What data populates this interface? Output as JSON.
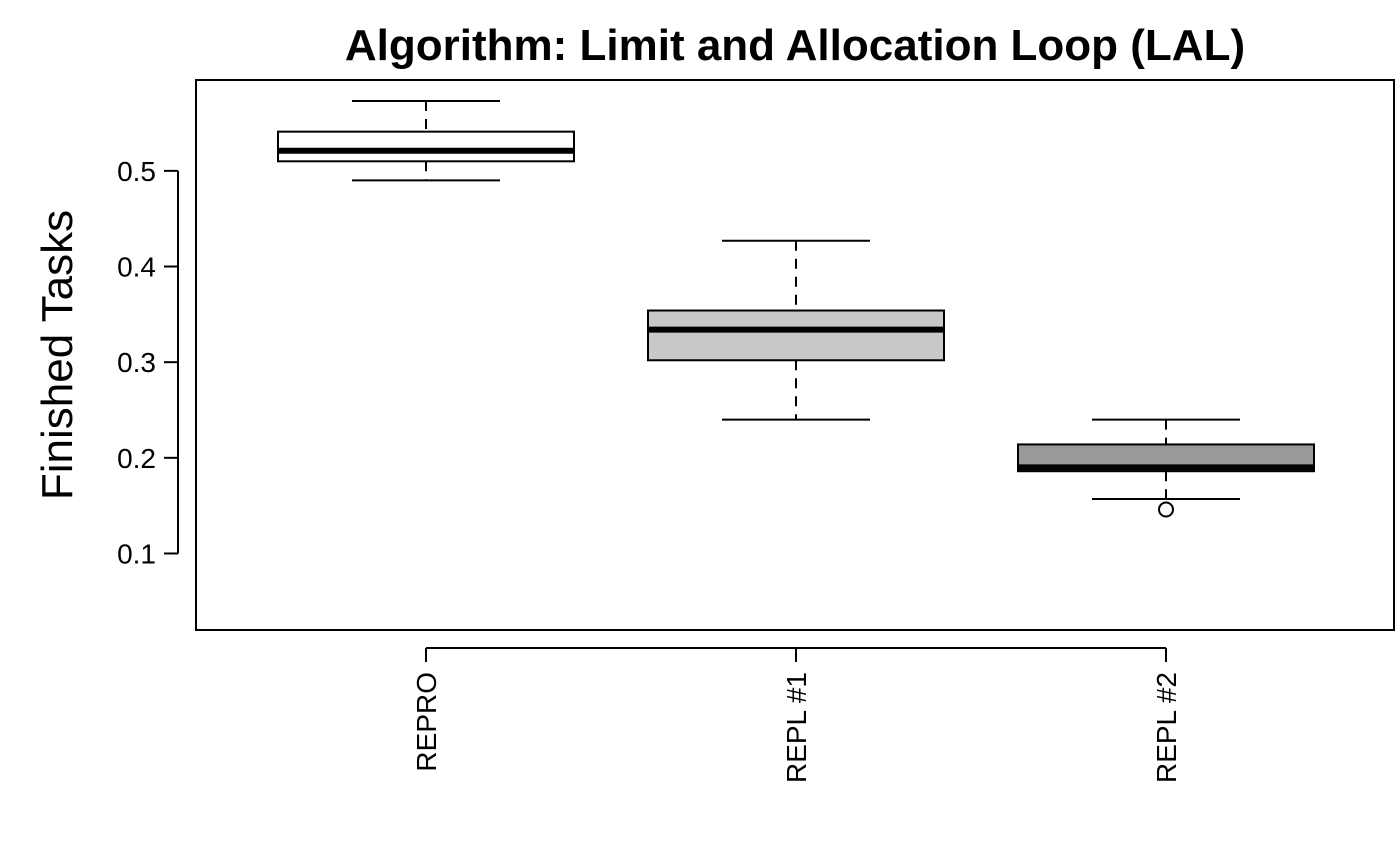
{
  "chart_data": {
    "type": "box",
    "title": "Algorithm: Limit and Allocation Loop (LAL)",
    "xlabel": "",
    "ylabel": "Finished Tasks",
    "ylim": [
      0.02,
      0.595
    ],
    "yticks": [
      0.1,
      0.2,
      0.3,
      0.4,
      0.5
    ],
    "ytick_labels": [
      "0.1",
      "0.2",
      "0.3",
      "0.4",
      "0.5"
    ],
    "categories": [
      "REPRO",
      "REPL #1",
      "REPL #2"
    ],
    "boxes": [
      {
        "category": "REPRO",
        "whisker_low": 0.49,
        "q1": 0.51,
        "median": 0.521,
        "q3": 0.541,
        "whisker_high": 0.573,
        "outliers": [],
        "fill": "#ffffff"
      },
      {
        "category": "REPL #1",
        "whisker_low": 0.24,
        "q1": 0.302,
        "median": 0.334,
        "q3": 0.354,
        "whisker_high": 0.427,
        "outliers": [],
        "fill": "#c8c8c8"
      },
      {
        "category": "REPL #2",
        "whisker_low": 0.157,
        "q1": 0.186,
        "median": 0.19,
        "q3": 0.214,
        "whisker_high": 0.24,
        "outliers": [
          0.146
        ],
        "fill": "#999999"
      }
    ],
    "grid": false,
    "legend": "none"
  }
}
